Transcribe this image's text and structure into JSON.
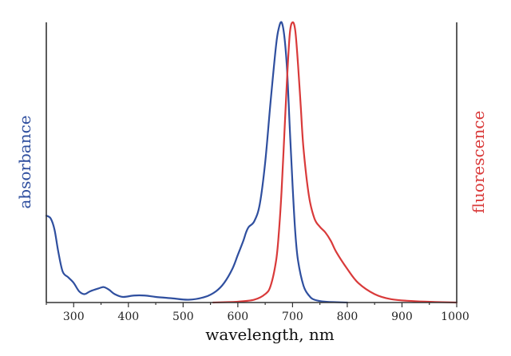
{
  "chart_data": {
    "type": "line",
    "title": "",
    "xlabel": "wavelength, nm",
    "ylabel_left": "absorbance",
    "ylabel_right": "fluorescence",
    "xlim": [
      250,
      1000
    ],
    "ylim": [
      0,
      1.0
    ],
    "x_ticks": [
      300,
      400,
      500,
      600,
      700,
      800,
      900,
      1000
    ],
    "grid": false,
    "colors": {
      "absorbance": "#2f4f9f",
      "fluorescence": "#d93a3a",
      "axis": "#333333"
    },
    "series": [
      {
        "name": "absorbance",
        "axis": "left",
        "x": [
          250,
          258,
          265,
          272,
          280,
          290,
          300,
          310,
          320,
          330,
          345,
          355,
          365,
          375,
          390,
          410,
          430,
          450,
          480,
          510,
          540,
          560,
          575,
          590,
          600,
          610,
          615,
          620,
          630,
          640,
          650,
          660,
          670,
          675,
          680,
          685,
          690,
          695,
          700,
          705,
          710,
          720,
          730,
          740,
          760,
          800
        ],
        "y": [
          0.31,
          0.3,
          0.26,
          0.18,
          0.11,
          0.09,
          0.07,
          0.04,
          0.03,
          0.04,
          0.05,
          0.055,
          0.045,
          0.03,
          0.02,
          0.025,
          0.025,
          0.02,
          0.015,
          0.01,
          0.02,
          0.04,
          0.07,
          0.12,
          0.17,
          0.22,
          0.25,
          0.27,
          0.29,
          0.35,
          0.5,
          0.72,
          0.92,
          0.98,
          1.0,
          0.95,
          0.83,
          0.62,
          0.42,
          0.25,
          0.15,
          0.06,
          0.025,
          0.01,
          0.003,
          0.0
        ]
      },
      {
        "name": "fluorescence",
        "axis": "right",
        "x": [
          555,
          600,
          630,
          650,
          660,
          670,
          675,
          680,
          685,
          690,
          695,
          700,
          705,
          710,
          715,
          720,
          730,
          740,
          750,
          760,
          770,
          780,
          800,
          820,
          850,
          880,
          920,
          960,
          1000
        ],
        "y": [
          0.0,
          0.003,
          0.01,
          0.03,
          0.06,
          0.15,
          0.25,
          0.4,
          0.6,
          0.8,
          0.96,
          1.0,
          0.97,
          0.85,
          0.7,
          0.55,
          0.38,
          0.3,
          0.27,
          0.25,
          0.22,
          0.18,
          0.12,
          0.07,
          0.03,
          0.012,
          0.005,
          0.002,
          0.0
        ]
      }
    ]
  }
}
